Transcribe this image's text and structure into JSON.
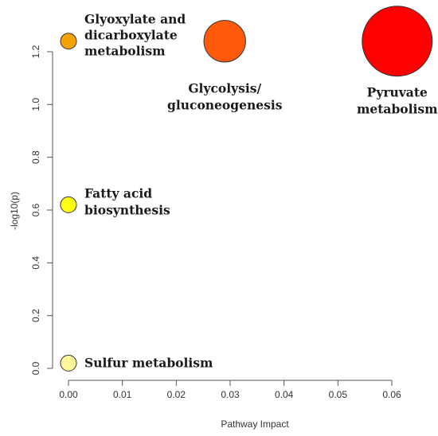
{
  "chart_data": {
    "type": "scatter",
    "title": "",
    "xlabel": "Pathway Impact",
    "ylabel": "-log10(p)",
    "xlim": [
      0.0,
      0.06
    ],
    "ylim": [
      0.0,
      1.25
    ],
    "xticks": [
      "0.00",
      "0.01",
      "0.02",
      "0.03",
      "0.04",
      "0.05",
      "0.06"
    ],
    "yticks": [
      "0.0",
      "0.2",
      "0.4",
      "0.6",
      "0.8",
      "1.0",
      "1.2"
    ],
    "grid": false,
    "legend": "none",
    "size_encodes": "Pathway Impact",
    "color_encodes": "-log10(p) (yellow = low, red = high)",
    "points": [
      {
        "label": "Glyoxylate and dicarboxylate metabolism",
        "label_lines": [
          "Glyoxylate and",
          "dicarboxylate",
          "metabolism"
        ],
        "x": 0.0,
        "y": 1.24,
        "color": "#f5a300"
      },
      {
        "label": "Glycolysis/ gluconeogenesis",
        "label_lines": [
          "Glycolysis/",
          "gluconeogenesis"
        ],
        "x": 0.029,
        "y": 1.24,
        "color": "#ff5a0a"
      },
      {
        "label": "Pyruvate metabolism",
        "label_lines": [
          "Pyruvate",
          "metabolism"
        ],
        "x": 0.061,
        "y": 1.24,
        "color": "#ff0000"
      },
      {
        "label": "Fatty acid biosynthesis",
        "label_lines": [
          "Fatty acid",
          "biosynthesis"
        ],
        "x": 0.0,
        "y": 0.62,
        "color": "#ffff0f"
      },
      {
        "label": "Sulfur metabolism",
        "label_lines": [
          "Sulfur metabolism"
        ],
        "x": 0.0,
        "y": 0.02,
        "color": "#fff59a"
      }
    ]
  }
}
